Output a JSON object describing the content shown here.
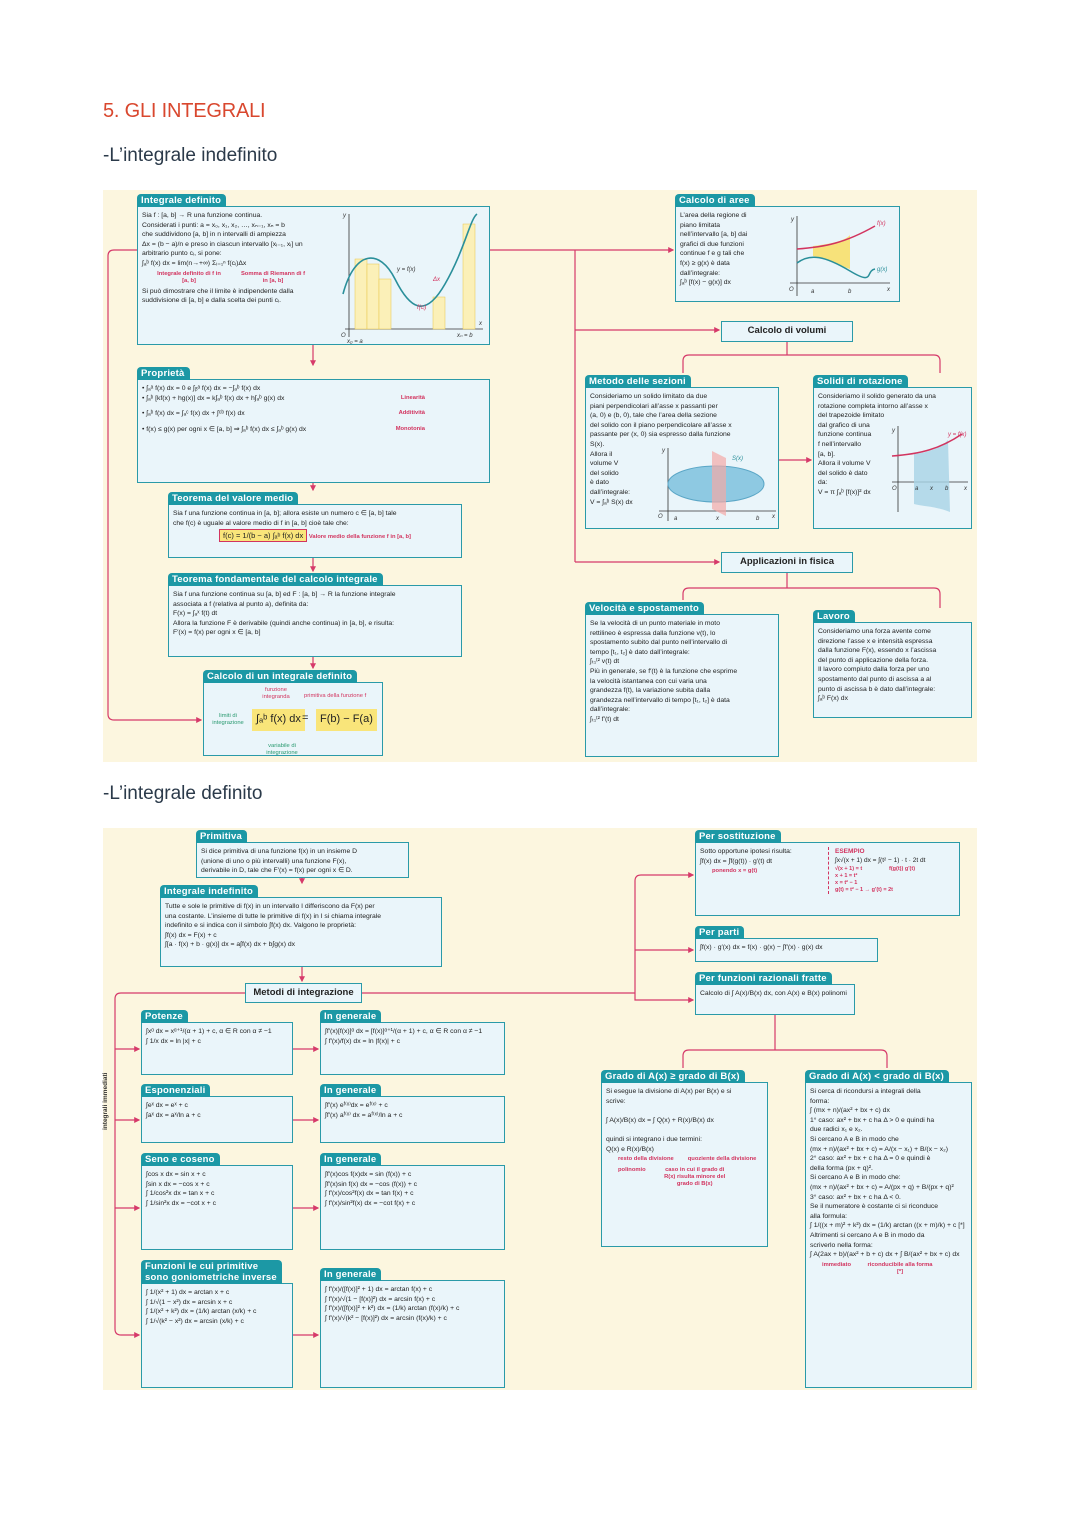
{
  "doc_title": "5. GLI INTEGRALI",
  "sections": [
    "-L’integrale indefinito",
    "-L’integrale definito"
  ],
  "colors": {
    "title": "#d9472e",
    "tab": "#1c98a5",
    "box_border": "#2a9aa8",
    "box_bg": "#eaf5fa",
    "panel_bg": "#fcf6df",
    "connector": "#d63a6a",
    "note": "#d2345f",
    "highlight": "#f9e57a"
  },
  "panel1": {
    "boxes": [
      {
        "id": "int_def",
        "title": "Integrale definito",
        "lines": [
          "Sia f : [a, b] → R una funzione continua.",
          "Considerati i punti: a = x₀, x₁, x₂, …, xₙ₋₁, xₙ = b",
          "che suddividono [a, b] in n intervalli di ampiezza",
          "Δx = (b − a)/n e preso in ciascun intervallo [xᵢ₋₁, xᵢ] un",
          "arbitrario punto cᵢ, si pone:",
          "  ∫ₐᵇ f(x) dx = lim(n→+∞) Σᵢ₌₁ⁿ f(cᵢ)Δx"
        ],
        "notes": [
          "Integrale definito di f in [a, b]",
          "Somma di Riemann di f in [a, b]"
        ],
        "footer": [
          "Si può dimostrare che il limite è indipendente dalla",
          "suddivisione di [a, b] e dalla scelta dei punti cᵢ."
        ],
        "figure_labels": [
          "y",
          "x",
          "O",
          "y = f(x)",
          "Δx",
          "f(cᵢ)",
          "x₀ = a",
          "xₙ = b"
        ]
      },
      {
        "id": "proprieta",
        "title": "Proprietà",
        "lines": [
          "•  ∫ₐᵃ f(x) dx = 0 e ∫ᵦᵃ f(x) dx = −∫ₐᵇ f(x) dx",
          "•  ∫ₐᵇ [kf(x) + hg(x)] dx = k∫ₐᵇ f(x) dx + h∫ₐᵇ g(x) dx",
          "•  ∫ₐᵇ f(x) dx = ∫ₐᶜ f(x) dx + ∫ᶜᵇ f(x) dx",
          "•  f(x) ≤ g(x) per ogni x ∈ [a, b] ⇒ ∫ₐᵇ f(x) dx ≤ ∫ₐᵇ g(x) dx"
        ],
        "labels": [
          "",
          "Linearità",
          "Additività",
          "Monotonia"
        ]
      },
      {
        "id": "media",
        "title": "Teorema del valore medio",
        "lines": [
          "Sia f una funzione continua in [a, b]; allora esiste un numero c ∈ [a, b] tale",
          "che f(c) è uguale al valore medio di f in [a, b] cioè tale che:"
        ],
        "formula": "f(c) = 1/(b − a) ∫ₐᵇ f(x) dx",
        "notes": [
          "Valore medio della funzione f in [a, b]"
        ]
      },
      {
        "id": "fondamentale",
        "title": "Teorema fondamentale del calcolo integrale",
        "lines": [
          "Sia f una funzione continua su [a, b] ed F : [a, b] → R la funzione integrale",
          "associata a f (relativa al punto a), definita da:",
          "   F(x) = ∫ₐˣ f(t) dt",
          "Allora la funzione F è derivabile (quindi anche continua) in [a, b], e risulta:",
          "   F′(x) = f(x)   per ogni x ∈ [a, b]"
        ]
      },
      {
        "id": "calcolo_def",
        "title": "Calcolo di un integrale definito",
        "formula_left": "∫ₐᵇ f(x) dx",
        "equals": "=",
        "formula_right": "F(b) − F(a)",
        "notes": [
          "funzione integranda",
          "primitiva della funzione f",
          "limiti di integrazione",
          "variabile di integrazione"
        ]
      },
      {
        "id": "aree",
        "title": "Calcolo di aree",
        "lines": [
          "L’area della regione di",
          "piano limitata",
          "nell’intervallo [a, b] dai",
          "grafici di due funzioni",
          "continue f e g tali che",
          "f(x) ≥ g(x) è data",
          "dall’integrale:",
          "  ∫ₐᵇ [f(x) − g(x)] dx"
        ],
        "figure_labels": [
          "y",
          "x",
          "O",
          "a",
          "b",
          "f(x)",
          "g(x)"
        ]
      },
      {
        "id": "sezioni",
        "title": "Metodo delle sezioni",
        "lines": [
          "Consideriamo un solido limitato da due",
          "piani perpendicolari all’asse x passanti per",
          "(a, 0) e (b, 0), tale che l’area della sezione",
          "del solido con il piano perpendicolare all’asse x",
          "passante per (x, 0) sia espresso dalla funzione",
          "S(x).",
          "Allora il",
          "volume V",
          "del solido",
          "è dato",
          "dall’integrale:",
          " V = ∫ₐᵇ S(x) dx"
        ],
        "figure_labels": [
          "y",
          "x",
          "O",
          "a",
          "x",
          "b",
          "S(x)"
        ]
      },
      {
        "id": "rotazione",
        "title": "Solidi di rotazione",
        "lines": [
          "Consideriamo il solido generato da una",
          "rotazione completa intorno all’asse x",
          "del trapezoide limitato",
          "dal grafico di una",
          "funzione continua",
          "f nell’intervallo",
          "[a, b].",
          "Allora il volume V",
          "del solido è dato",
          "da:",
          "   V = π ∫ₐᵇ [f(x)]² dx"
        ],
        "figure_labels": [
          "y",
          "x",
          "O",
          "a",
          "x",
          "b",
          "y = f(x)"
        ]
      },
      {
        "id": "velocita",
        "title": "Velocità e spostamento",
        "lines": [
          "Se la velocità di un punto materiale in moto",
          "rettilineo è espressa dalla funzione v(t), lo",
          "spostamento subito dal punto nell’intervallo di",
          "tempo [t₁, t₂] è dato dall’integrale:",
          "  ∫ₜ₁ᵗ² v(t) dt",
          "Più in generale, se f′(t) è la funzione che esprime",
          "la velocità istantanea con cui varia una",
          "grandezza f(t), la variazione subita dalla",
          "grandezza nell’intervallo di tempo [t₁, t₂] è data",
          "dall’integrale:",
          "  ∫ₜ₁ᵗ² f′(t) dt"
        ]
      },
      {
        "id": "lavoro",
        "title": "Lavoro",
        "lines": [
          "Consideriamo una forza avente come",
          "direzione l’asse x e intensità espressa",
          "dalla funzione F(x), essendo x l’ascissa",
          "del punto di applicazione della forza.",
          "Il lavoro compiuto dalla forza per uno",
          "spostamento dal punto di ascissa a al",
          "punto di ascissa b è dato dall’integrale:",
          "  ∫ₐᵇ F(x) dx"
        ]
      }
    ],
    "nodes": {
      "volumi": "Calcolo di volumi",
      "fisica": "Applicazioni in fisica"
    }
  },
  "panel2": {
    "boxes": [
      {
        "id": "primitiva",
        "title": "Primitiva",
        "lines": [
          "Si dice primitiva di una funzione f(x) in un insieme D",
          "(unione di uno o più intervalli) una funzione F(x),",
          "derivabile in D, tale che F′(x) = f(x) per ogni x ∈ D."
        ]
      },
      {
        "id": "indefinito",
        "title": "Integrale indefinito",
        "lines": [
          "Tutte e sole le primitive di f(x) in un intervallo I differiscono da F(x) per",
          "una costante. L’insieme di tutte le primitive di f(x) in I si chiama integrale",
          "indefinito e si indica con il simbolo ∫f(x) dx. Valgono le proprietà:",
          "        ∫f(x) dx = F(x) + c",
          "        ∫[a · f(x) + b · g(x)] dx = a∫f(x) dx + b∫g(x) dx"
        ]
      },
      {
        "id": "potenze",
        "title": "Potenze",
        "lines": [
          "∫xᵅ dx = xᵅ⁺¹/(α + 1) + c, α ∈ R con α ≠ −1",
          "∫ 1/x dx = ln |x| + c"
        ]
      },
      {
        "id": "gen1",
        "title": "In generale",
        "lines": [
          "∫f′(x)[f(x)]ᵅ dx = [f(x)]ᵅ⁺¹/(α + 1) + c, α ∈ R con α ≠ −1",
          "∫ f′(x)/f(x) dx = ln |f(x)| + c"
        ]
      },
      {
        "id": "esponenziali",
        "title": "Esponenziali",
        "lines": [
          "∫eˣ dx = eˣ + c",
          "∫aˣ dx = aˣ/ln a + c"
        ]
      },
      {
        "id": "gen2",
        "title": "In generale",
        "lines": [
          "∫f′(x) eᶠ⁽ˣ⁾dx = eᶠ⁽ˣ⁾ + c",
          "∫f′(x) aᶠ⁽ˣ⁾ dx = aᶠ⁽ˣ⁾/ln a + c"
        ]
      },
      {
        "id": "seno",
        "title": "Seno e coseno",
        "lines": [
          "∫cos x dx = sin x + c",
          "∫sin x dx = −cos x + c",
          "∫ 1/cos²x dx = tan x + c",
          "∫ 1/sin²x dx = −cot x + c"
        ]
      },
      {
        "id": "gen3",
        "title": "In generale",
        "lines": [
          "∫f′(x)cos f(x)dx = sin (f(x)) + c",
          "∫f′(x)sin f(x) dx = −cos (f(x)) + c",
          "∫ f′(x)/cos²f(x) dx = tan f(x) + c",
          "∫ f′(x)/sin²f(x) dx = −cot f(x) + c"
        ]
      },
      {
        "id": "gonio",
        "title": "Funzioni le cui primitive\nsono goniometriche inverse",
        "lines": [
          "∫ 1/(x² + 1) dx = arctan x + c",
          "∫ 1/√(1 − x²) dx = arcsin x + c",
          "∫ 1/(x² + k²) dx = (1/k) arctan (x/k) + c",
          "∫ 1/√(k² − x²) dx = arcsin (x/k) + c"
        ]
      },
      {
        "id": "gen4",
        "title": "In generale",
        "lines": [
          "∫ f′(x)/([f(x)]² + 1) dx = arctan f(x) + c",
          "∫ f′(x)/√(1 − [f(x)]²) dx = arcsin f(x) + c",
          "∫ f′(x)/([f(x)]² + k²) dx = (1/k) arctan (f(x)/k) + c",
          "∫ f′(x)/√(k² − [f(x)]²) dx = arcsin (f(x)/k) + c"
        ]
      },
      {
        "id": "sostituzione",
        "title": "Per sostituzione",
        "lines": [
          "Sotto opportune ipotesi risulta:",
          "∫f(x) dx = ∫f(g(t)) · g′(t) dt"
        ],
        "notes": [
          "ponendo x = g(t)"
        ],
        "example_title": "ESEMPIO",
        "example_lines": [
          "∫x√(x + 1) dx = ∫(t² − 1) · t · 2t dt",
          "√(x + 1) = t",
          "x + 1 = t²",
          "x = t² − 1",
          "g(t) = t² − 1 → g′(t) = 2t"
        ],
        "example_notes": [
          "f(g(t))",
          "g′(t)"
        ]
      },
      {
        "id": "parti",
        "title": "Per parti",
        "lines": [
          "∫f(x) · g′(x) dx = f(x) · g(x) − ∫f′(x) · g(x) dx"
        ]
      },
      {
        "id": "fratte",
        "title": "Per funzioni razionali fratte",
        "lines": [
          "Calcolo di ∫ A(x)/B(x) dx, con A(x) e B(x) polinomi"
        ]
      },
      {
        "id": "grado_ge",
        "title": "Grado di A(x) ≥ grado di B(x)",
        "lines": [
          "Si esegue la divisione di A(x) per B(x) e si",
          "scrive:",
          "",
          "∫ A(x)/B(x) dx = ∫ Q(x) + R(x)/B(x) dx",
          "",
          "quindi si integrano i due termini:",
          "      Q(x)   e   R(x)/B(x)"
        ],
        "notes": [
          "resto della divisione",
          "quoziente della divisione",
          "polinomio",
          "caso in cui il grado di R(x) risulta minore del grado di B(x)"
        ]
      },
      {
        "id": "grado_lt",
        "title": "Grado di A(x) < grado di B(x)",
        "lines": [
          "Si cerca di ricondursi a integrali della",
          "forma:",
          "            ∫ (mx + n)/(ax² + bx + c) dx",
          "1° caso: ax² + bx + c ha Δ > 0 e quindi ha",
          "due radici x₁ e x₂.",
          "Si cercano A e B in modo che",
          "   (mx + n)/(ax² + bx + c) = A/(x − x₁) + B/(x − x₂)",
          "2° caso: ax² + bx + c ha Δ = 0 e quindi è",
          "della forma (px + q)².",
          "Si cercano A e B in modo che:",
          "   (mx + n)/(ax² + bx + c) = A/(px + q) + B/(px + q)²",
          "3° caso: ax² + bx + c ha Δ < 0.",
          "Se il numeratore è costante ci si riconduce",
          "alla formula:",
          "∫ 1/((x + m)² + k²) dx = (1/k) arctan ((x + m)/k) + c  [*]",
          "Altrimenti si cercano A e B in modo da",
          "scriverlo nella forma:",
          "  ∫ A(2ax + b)/(ax² + b + c) dx + ∫ B/(ax² + bx + c) dx"
        ],
        "notes": [
          "immediato",
          "riconducibile alla forma [*]"
        ]
      }
    ],
    "nodes": {
      "metodi": "Metodi di integrazione"
    },
    "side_label": "integrali immediati"
  }
}
